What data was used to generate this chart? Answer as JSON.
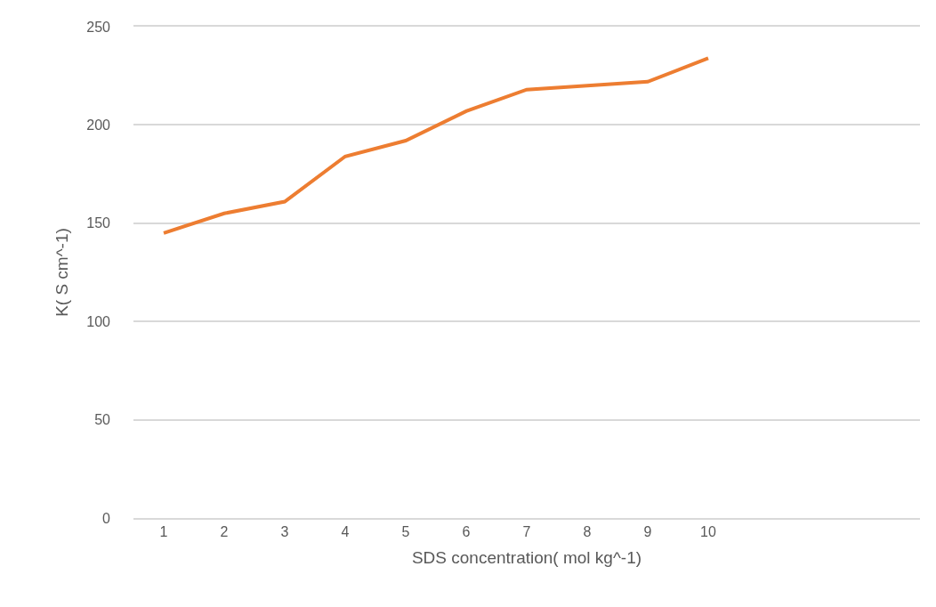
{
  "chart_data": {
    "type": "line",
    "xlabel": "SDS concentration( mol kg^-1)",
    "ylabel": "K( S cm^-1)",
    "categories": [
      "1",
      "2",
      "3",
      "4",
      "5",
      "6",
      "7",
      "8",
      "9",
      "10",
      null,
      null,
      null
    ],
    "series": [
      {
        "color": "#ed7d31",
        "values": [
          145,
          155,
          161,
          184,
          192,
          207,
          218,
          220,
          222,
          234,
          null,
          null,
          null
        ]
      }
    ],
    "ylim": [
      0,
      250
    ],
    "yticks": [
      0,
      50,
      100,
      150,
      200,
      250
    ],
    "grid": "y",
    "marker": "none",
    "line_style": "solid"
  }
}
